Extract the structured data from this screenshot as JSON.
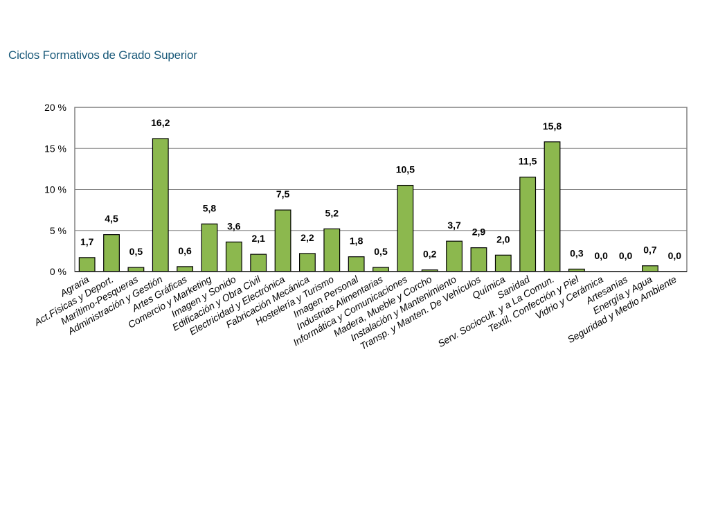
{
  "page": {
    "title": "Ciclos Formativos de Grado Superior"
  },
  "colors": {
    "bar_fill": "#8cb84e",
    "bar_stroke": "#000000",
    "grid": "#808080",
    "title": "#1a5a7a"
  },
  "chart_data": {
    "type": "bar",
    "title": "Ciclos Formativos de Grado Superior",
    "xlabel": "",
    "ylabel": "",
    "ylim": [
      0,
      20
    ],
    "grid": true,
    "legend": "none",
    "y_ticks": [
      {
        "value": 0,
        "label": "0 %"
      },
      {
        "value": 5,
        "label": "5 %"
      },
      {
        "value": 10,
        "label": "10 %"
      },
      {
        "value": 15,
        "label": "15 %"
      },
      {
        "value": 20,
        "label": "20 %"
      }
    ],
    "categories": [
      "Agraria",
      "Act.Físicas y Deport.",
      "Marítimo-Pesqueras",
      "Administración y Gestión",
      "Artes Gráficas",
      "Comercio y Marketing",
      "Imagen y Sonido",
      "Edificación y Obra Civil",
      "Electricidad y Electrónica",
      "Fabricación Mecánica",
      "Hostelería y Turismo",
      "Imagen Personal",
      "Industrias Alimentarias",
      "Informática y Comunicaciones",
      "Madera, Mueble y Corcho",
      "Instalación y Mantenimiento",
      "Transp. y Manten. De Vehículos",
      "Química",
      "Sanidad",
      "Serv. Sociocult. y a La Comun.",
      "Textil, Confección y Piel",
      "Vidrio y Cerámica",
      "Artesanías",
      "Energía y Agua",
      "Seguridad y Medio Ambiente"
    ],
    "values": [
      1.7,
      4.5,
      0.5,
      16.2,
      0.6,
      5.8,
      3.6,
      2.1,
      7.5,
      2.2,
      5.2,
      1.8,
      0.5,
      10.5,
      0.2,
      3.7,
      2.9,
      2.0,
      11.5,
      15.8,
      0.3,
      0.0,
      0.0,
      0.7,
      0.0
    ],
    "value_labels": [
      "1,7",
      "4,5",
      "0,5",
      "16,2",
      "0,6",
      "5,8",
      "3,6",
      "2,1",
      "7,5",
      "2,2",
      "5,2",
      "1,8",
      "0,5",
      "10,5",
      "0,2",
      "3,7",
      "2,9",
      "2,0",
      "11,5",
      "15,8",
      "0,3",
      "0,0",
      "0,0",
      "0,7",
      "0,0"
    ]
  }
}
